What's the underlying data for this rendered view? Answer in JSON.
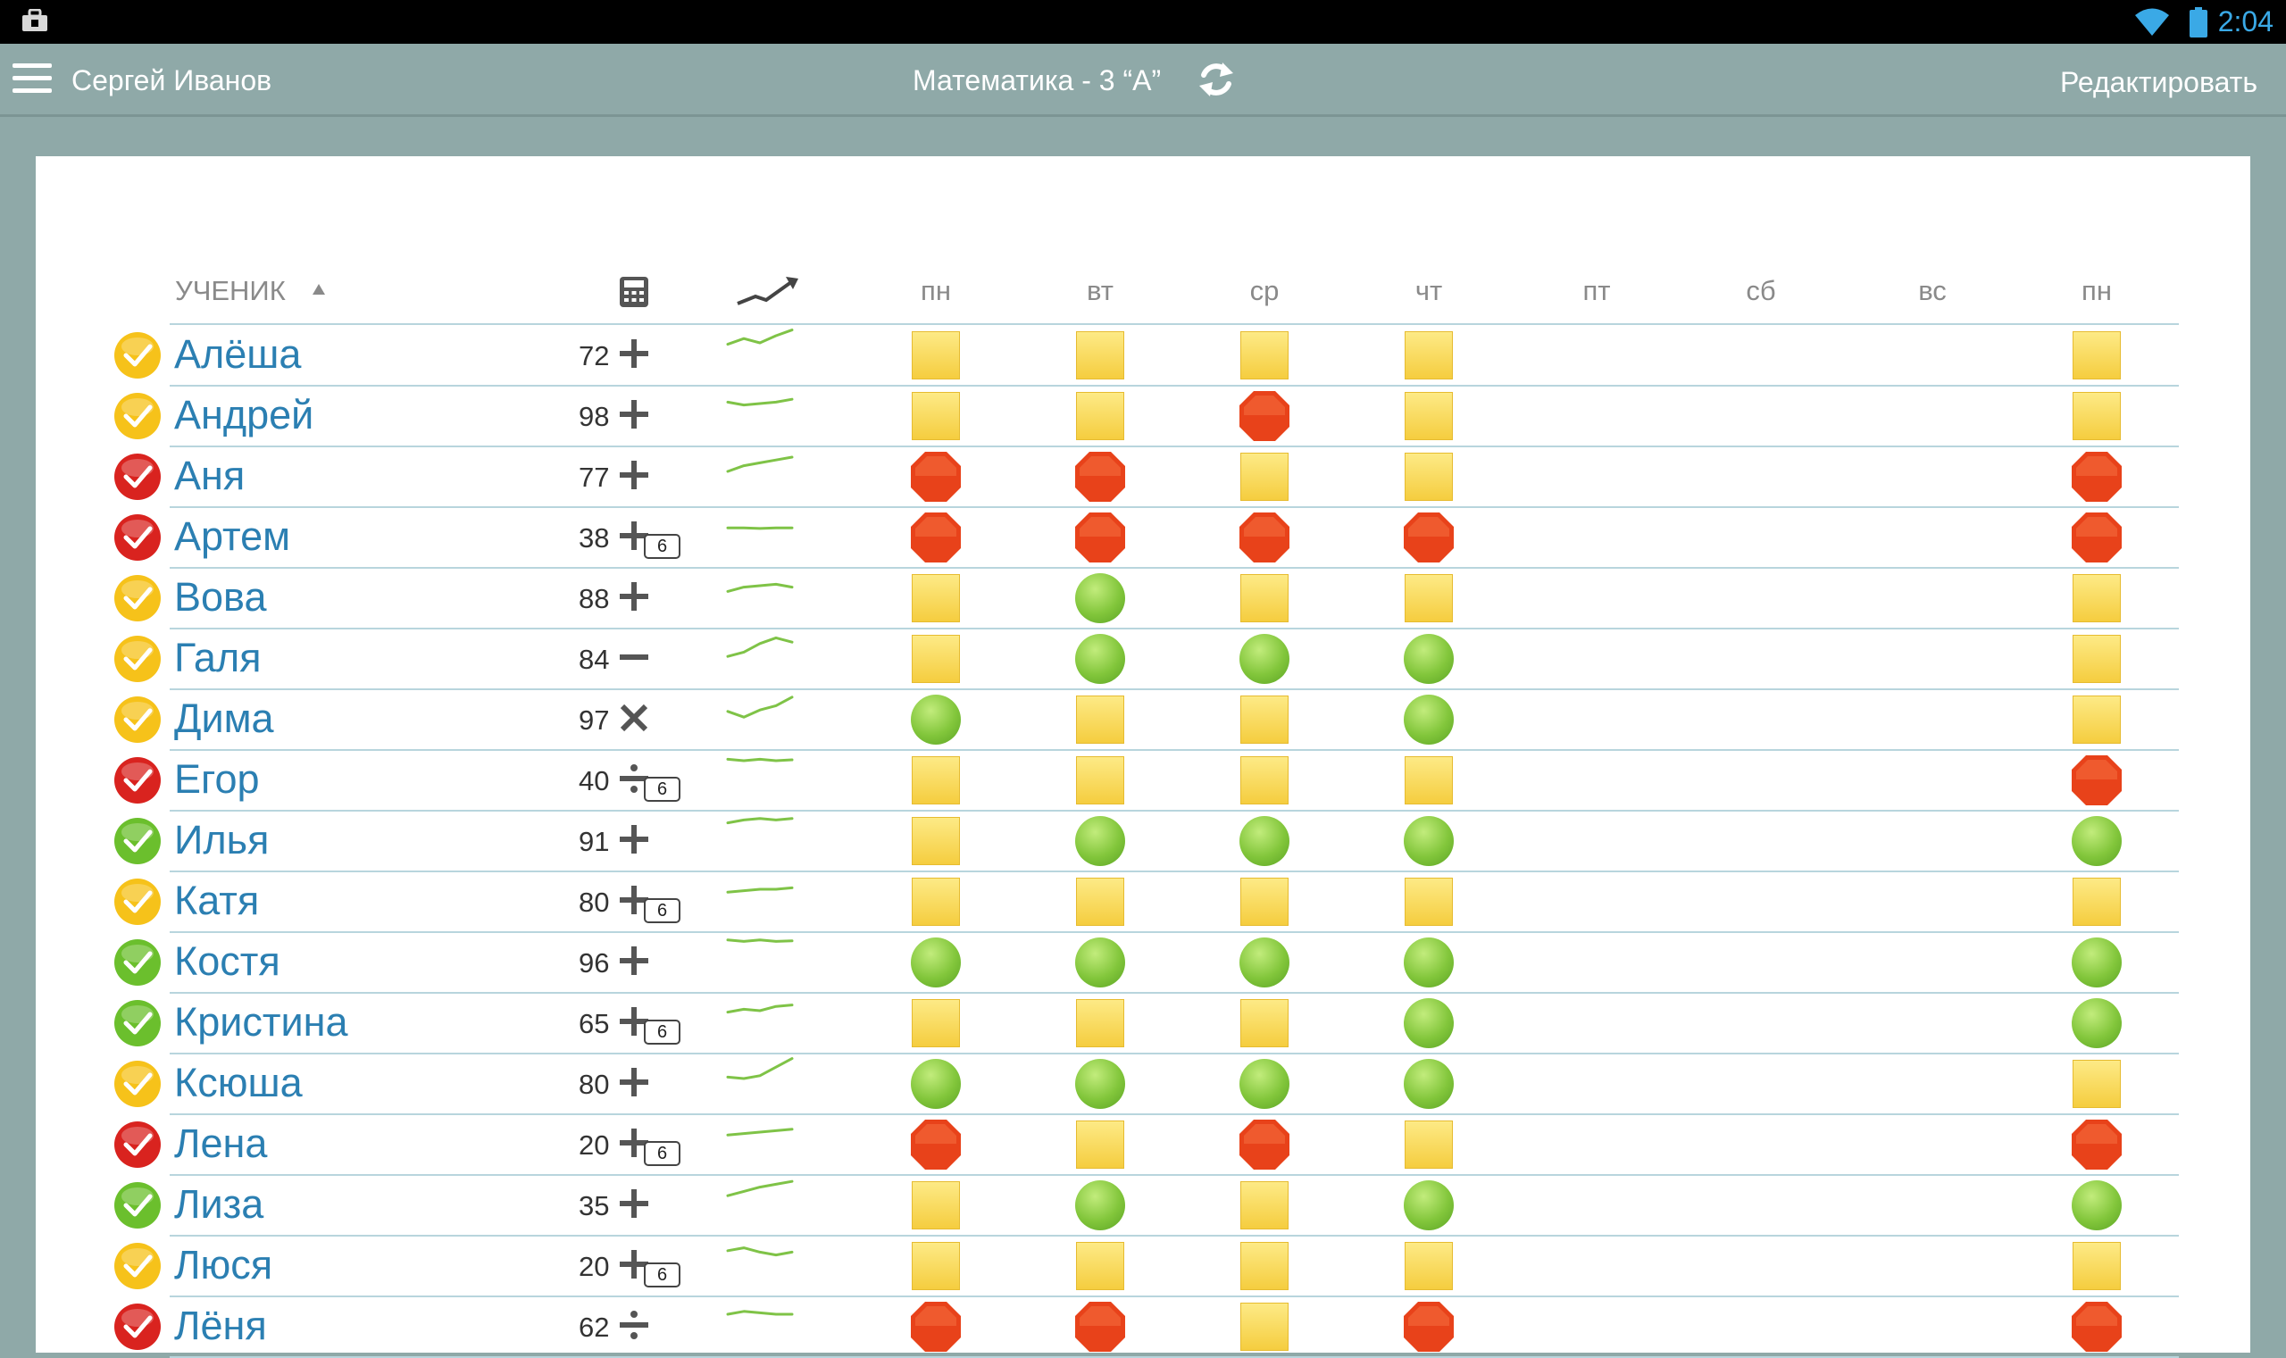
{
  "status_bar": {
    "time": "2:04"
  },
  "app_bar": {
    "user_name": "Сергей Иванов",
    "class_title": "Математика - 3 “А”",
    "edit_label": "Редактировать"
  },
  "table": {
    "student_header": "УЧЕНИК",
    "day_headers": [
      "пн",
      "вт",
      "ср",
      "чт",
      "пт",
      "сб",
      "вс",
      "пн"
    ],
    "students": [
      {
        "name": "Алёша",
        "score": "72",
        "op": "plus",
        "badge": "",
        "status": "yellow",
        "trend": [
          0.55,
          0.35,
          0.5,
          0.25,
          0.05
        ],
        "marks": [
          "s",
          "s",
          "s",
          "s",
          "",
          "",
          "",
          "s"
        ]
      },
      {
        "name": "Андрей",
        "score": "98",
        "op": "plus",
        "badge": "",
        "status": "yellow",
        "trend": [
          0.45,
          0.55,
          0.5,
          0.45,
          0.35
        ],
        "marks": [
          "s",
          "s",
          "r",
          "s",
          "",
          "",
          "",
          "s"
        ]
      },
      {
        "name": "Аня",
        "score": "77",
        "op": "plus",
        "badge": "",
        "status": "red",
        "trend": [
          0.75,
          0.55,
          0.45,
          0.35,
          0.25
        ],
        "marks": [
          "r",
          "r",
          "s",
          "s",
          "",
          "",
          "",
          "r"
        ]
      },
      {
        "name": "Артем",
        "score": "38",
        "op": "plus",
        "badge": "6",
        "status": "red",
        "trend": [
          0.6,
          0.6,
          0.62,
          0.6,
          0.6
        ],
        "marks": [
          "r",
          "r",
          "r",
          "r",
          "",
          "",
          "",
          "r"
        ]
      },
      {
        "name": "Вова",
        "score": "88",
        "op": "plus",
        "badge": "",
        "status": "yellow",
        "trend": [
          0.7,
          0.55,
          0.5,
          0.45,
          0.55
        ],
        "marks": [
          "s",
          "g",
          "s",
          "s",
          "",
          "",
          "",
          "s"
        ]
      },
      {
        "name": "Галя",
        "score": "84",
        "op": "minus",
        "badge": "",
        "status": "yellow",
        "trend": [
          0.85,
          0.7,
          0.4,
          0.2,
          0.35
        ],
        "marks": [
          "s",
          "g",
          "g",
          "g",
          "",
          "",
          "",
          "s"
        ]
      },
      {
        "name": "Дима",
        "score": "97",
        "op": "times",
        "badge": "",
        "status": "yellow",
        "trend": [
          0.65,
          0.85,
          0.6,
          0.45,
          0.15
        ],
        "marks": [
          "g",
          "s",
          "s",
          "g",
          "",
          "",
          "",
          "s"
        ]
      },
      {
        "name": "Егор",
        "score": "40",
        "op": "divide",
        "badge": "6",
        "status": "red",
        "trend": [
          0.2,
          0.25,
          0.2,
          0.25,
          0.22
        ],
        "marks": [
          "s",
          "s",
          "s",
          "s",
          "",
          "",
          "",
          "r"
        ]
      },
      {
        "name": "Илья",
        "score": "91",
        "op": "plus",
        "badge": "",
        "status": "green",
        "trend": [
          0.3,
          0.2,
          0.15,
          0.2,
          0.15
        ],
        "marks": [
          "s",
          "g",
          "g",
          "g",
          "",
          "",
          "",
          "g"
        ]
      },
      {
        "name": "Катя",
        "score": "80",
        "op": "plus",
        "badge": "6",
        "status": "yellow",
        "trend": [
          0.6,
          0.55,
          0.5,
          0.5,
          0.45
        ],
        "marks": [
          "s",
          "s",
          "s",
          "s",
          "",
          "",
          "",
          "s"
        ]
      },
      {
        "name": "Костя",
        "score": "96",
        "op": "plus",
        "badge": "",
        "status": "green",
        "trend": [
          0.15,
          0.2,
          0.15,
          0.2,
          0.18
        ],
        "marks": [
          "g",
          "g",
          "g",
          "g",
          "",
          "",
          "",
          "g"
        ]
      },
      {
        "name": "Кристина",
        "score": "65",
        "op": "plus",
        "badge": "6",
        "status": "green",
        "trend": [
          0.55,
          0.45,
          0.5,
          0.35,
          0.3
        ],
        "marks": [
          "s",
          "s",
          "s",
          "g",
          "",
          "",
          "",
          "g"
        ]
      },
      {
        "name": "Ксюша",
        "score": "80",
        "op": "plus",
        "badge": "",
        "status": "yellow",
        "trend": [
          0.7,
          0.75,
          0.65,
          0.35,
          0.05
        ],
        "marks": [
          "g",
          "g",
          "g",
          "g",
          "",
          "",
          "",
          "s"
        ]
      },
      {
        "name": "Лена",
        "score": "20",
        "op": "plus",
        "badge": "6",
        "status": "red",
        "trend": [
          0.6,
          0.55,
          0.5,
          0.45,
          0.4
        ],
        "marks": [
          "r",
          "s",
          "r",
          "s",
          "",
          "",
          "",
          "r"
        ]
      },
      {
        "name": "Лиза",
        "score": "35",
        "op": "plus",
        "badge": "",
        "status": "green",
        "trend": [
          0.6,
          0.45,
          0.3,
          0.2,
          0.1
        ],
        "marks": [
          "s",
          "g",
          "s",
          "g",
          "",
          "",
          "",
          "g"
        ]
      },
      {
        "name": "Люся",
        "score": "20",
        "op": "plus",
        "badge": "6",
        "status": "yellow",
        "trend": [
          0.4,
          0.3,
          0.45,
          0.55,
          0.45
        ],
        "marks": [
          "s",
          "s",
          "s",
          "s",
          "",
          "",
          "",
          "s"
        ]
      },
      {
        "name": "Лёня",
        "score": "62",
        "op": "divide",
        "badge": "",
        "status": "red",
        "trend": [
          0.5,
          0.4,
          0.45,
          0.5,
          0.5
        ],
        "marks": [
          "r",
          "r",
          "s",
          "r",
          "",
          "",
          "",
          "r"
        ]
      }
    ]
  },
  "colors": {
    "yellow": "#f6c21a",
    "red": "#d9231f",
    "green": "#6bbf2d",
    "bar": "#8fa9a8",
    "name": "#2b7fb2",
    "line": "#b8d5dd",
    "spark": "#7fc347",
    "stop": "#e8421a"
  }
}
